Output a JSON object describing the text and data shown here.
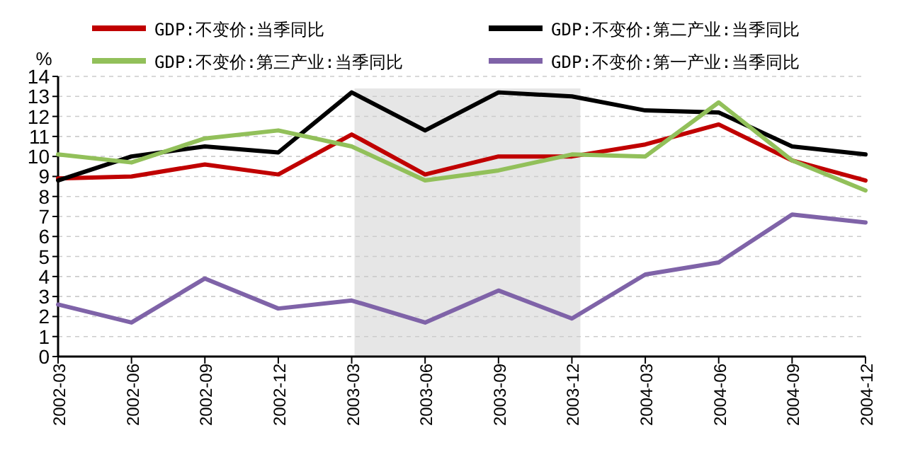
{
  "chart_data": {
    "type": "line",
    "ylabel": "%",
    "categories": [
      "2002-03",
      "2002-06",
      "2002-09",
      "2002-12",
      "2003-03",
      "2003-06",
      "2003-09",
      "2003-12",
      "2004-03",
      "2004-06",
      "2004-09",
      "2004-12"
    ],
    "series": [
      {
        "name": "GDP:不变价:当季同比",
        "color": "#c00000",
        "values": [
          8.9,
          9.0,
          9.6,
          9.1,
          11.1,
          9.1,
          10.0,
          10.0,
          10.6,
          11.6,
          9.8,
          8.8
        ]
      },
      {
        "name": "GDP:不变价:第二产业:当季同比",
        "color": "#000000",
        "values": [
          8.8,
          10.0,
          10.5,
          10.2,
          13.2,
          11.3,
          13.2,
          13.0,
          12.3,
          12.2,
          10.5,
          10.1
        ]
      },
      {
        "name": "GDP:不变价:第三产业:当季同比",
        "color": "#92c05a",
        "values": [
          10.1,
          9.7,
          10.9,
          11.3,
          10.5,
          8.8,
          9.3,
          10.1,
          10.0,
          12.7,
          9.8,
          8.3
        ]
      },
      {
        "name": "GDP:不变价:第一产业:当季同比",
        "color": "#7f63a8",
        "values": [
          2.6,
          1.7,
          3.9,
          2.4,
          2.8,
          1.7,
          3.3,
          1.9,
          4.1,
          4.7,
          7.1,
          6.7
        ]
      }
    ],
    "ylim": [
      0,
      14
    ],
    "yticks": [
      0,
      1,
      2,
      3,
      4,
      5,
      6,
      7,
      8,
      9,
      10,
      11,
      12,
      13,
      14
    ],
    "bands": [
      {
        "axis": "x",
        "from": "2003-03",
        "to": "2003-12",
        "color": "#e6e6e6"
      }
    ],
    "grid": "y",
    "legend": "top",
    "marker": "none",
    "line_style": "solid"
  }
}
